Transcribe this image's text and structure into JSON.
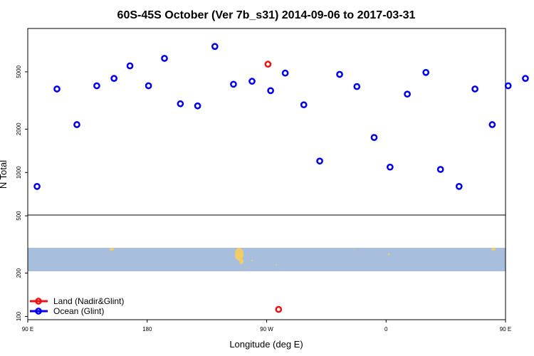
{
  "colors": {
    "ocean": "#0000ee",
    "land": "#ee1111",
    "map_water": "#a8bedd",
    "map_land": "#f2cc66",
    "axis": "#000000"
  },
  "chart_data": {
    "type": "scatter",
    "title": "60S-45S October (Ver 7b_s31)   2014-09-06 to 2017-03-31",
    "xlabel": "Longitude (deg E)",
    "ylabel": "N Total",
    "x_scale": "longitude",
    "y_scale": "log",
    "xlim": [
      90,
      450
    ],
    "ylim": [
      95,
      10000
    ],
    "x_ticks": [
      {
        "value": 90,
        "label": "90 E"
      },
      {
        "value": 180,
        "label": "180"
      },
      {
        "value": 270,
        "label": "90 W"
      },
      {
        "value": 360,
        "label": "0"
      },
      {
        "value": 450,
        "label": "90 E"
      },
      {
        "value": 540,
        "label": "180"
      }
    ],
    "y_ticks": [
      {
        "value": 100,
        "label": "100"
      },
      {
        "value": 200,
        "label": "200"
      },
      {
        "value": 500,
        "label": "500"
      },
      {
        "value": 1000,
        "label": "1000"
      },
      {
        "value": 2000,
        "label": "2000"
      },
      {
        "value": 5000,
        "label": "5000"
      }
    ],
    "map_band": {
      "lat_range": [
        "60S",
        "45S"
      ]
    },
    "legend": {
      "placement": "bottom-left",
      "entries": [
        {
          "name": "Land (Nadir&Glint)",
          "color_key": "land"
        },
        {
          "name": "Ocean (Glint)",
          "color_key": "ocean"
        }
      ]
    },
    "series": [
      {
        "name": "Ocean (Glint)",
        "color_key": "ocean",
        "points": [
          [
            97,
            800
          ],
          [
            112,
            3800
          ],
          [
            127,
            2150
          ],
          [
            142,
            4000
          ],
          [
            155,
            4500
          ],
          [
            167,
            5500
          ],
          [
            181,
            4000
          ],
          [
            193,
            6200
          ],
          [
            205,
            3000
          ],
          [
            218,
            2900
          ],
          [
            231,
            7500
          ],
          [
            245,
            4100
          ],
          [
            259,
            4300
          ],
          [
            273,
            3700
          ],
          [
            284,
            4900
          ],
          [
            298,
            2950
          ],
          [
            310,
            1200
          ],
          [
            325,
            4800
          ],
          [
            338,
            3950
          ],
          [
            351,
            1750
          ],
          [
            363,
            1090
          ],
          [
            376,
            3500
          ],
          [
            390,
            4950
          ],
          [
            401,
            1050
          ],
          [
            415,
            800
          ],
          [
            427,
            3800
          ],
          [
            440,
            2150
          ],
          [
            452,
            4000
          ],
          [
            465,
            4500
          ],
          [
            478,
            5300
          ]
        ]
      },
      {
        "name": "Land (Nadir&Glint)",
        "color_key": "land",
        "points": [
          [
            271,
            5650
          ],
          [
            279,
            112
          ]
        ]
      }
    ]
  }
}
